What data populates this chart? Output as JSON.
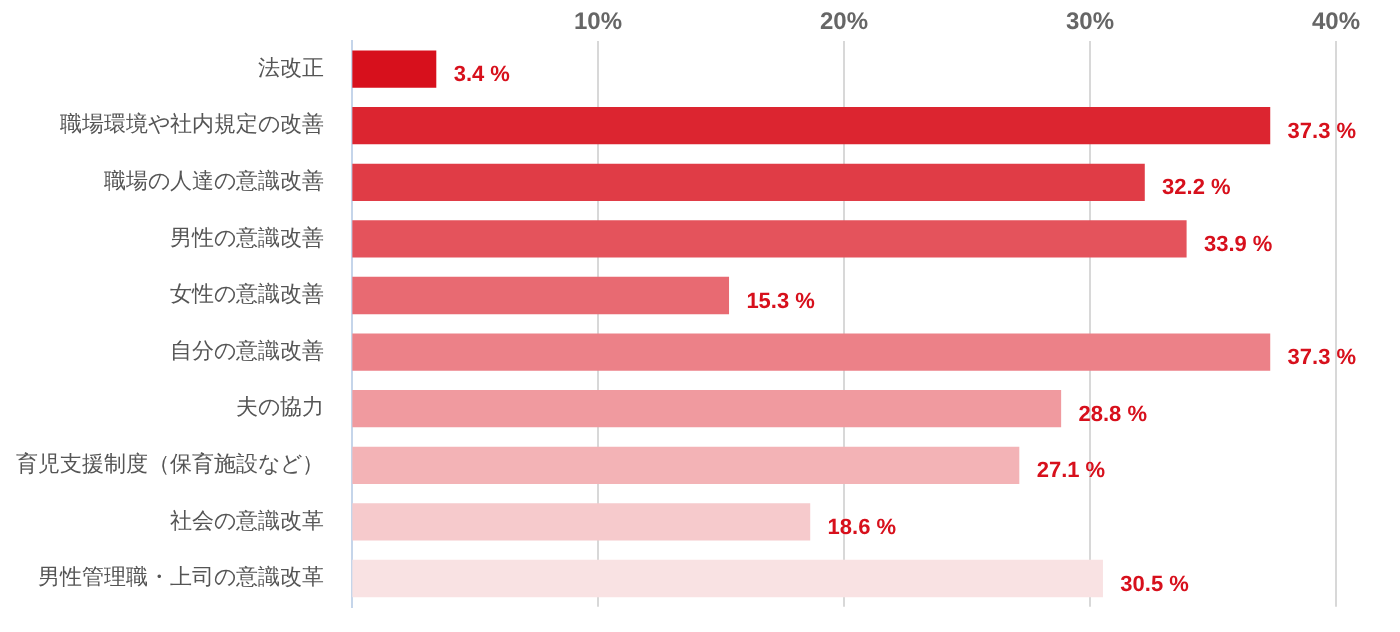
{
  "chart_data": {
    "type": "bar",
    "orientation": "horizontal",
    "categories": [
      "法改正",
      "職場環境や社内規定の改善",
      "職場の人達の意識改善",
      "男性の意識改善",
      "女性の意識改善",
      "自分の意識改善",
      "夫の協力",
      "育児支援制度（保育施設など）",
      "社会の意識改革",
      "男性管理職・上司の意識改革"
    ],
    "values": [
      3.4,
      37.3,
      32.2,
      33.9,
      15.3,
      37.3,
      28.8,
      27.1,
      18.6,
      30.5
    ],
    "value_labels": [
      "3.4 %",
      "37.3 %",
      "32.2 %",
      "33.9 %",
      "15.3 %",
      "37.3 %",
      "28.8 %",
      "27.1 %",
      "18.6 %",
      "30.5 %"
    ],
    "colors": [
      "#d7101c",
      "#dc2530",
      "#e03c46",
      "#e4535c",
      "#e86a72",
      "#ec8188",
      "#f09a9f",
      "#f3b3b6",
      "#f6cacc",
      "#f9e2e3"
    ],
    "xlim": [
      0,
      40
    ],
    "xticks": [
      {
        "value": 0,
        "label": null
      },
      {
        "value": 10,
        "label": "10%"
      },
      {
        "value": 20,
        "label": "20%"
      },
      {
        "value": 30,
        "label": "30%"
      },
      {
        "value": 40,
        "label": "40%"
      }
    ],
    "grid": "x",
    "legend": false
  }
}
